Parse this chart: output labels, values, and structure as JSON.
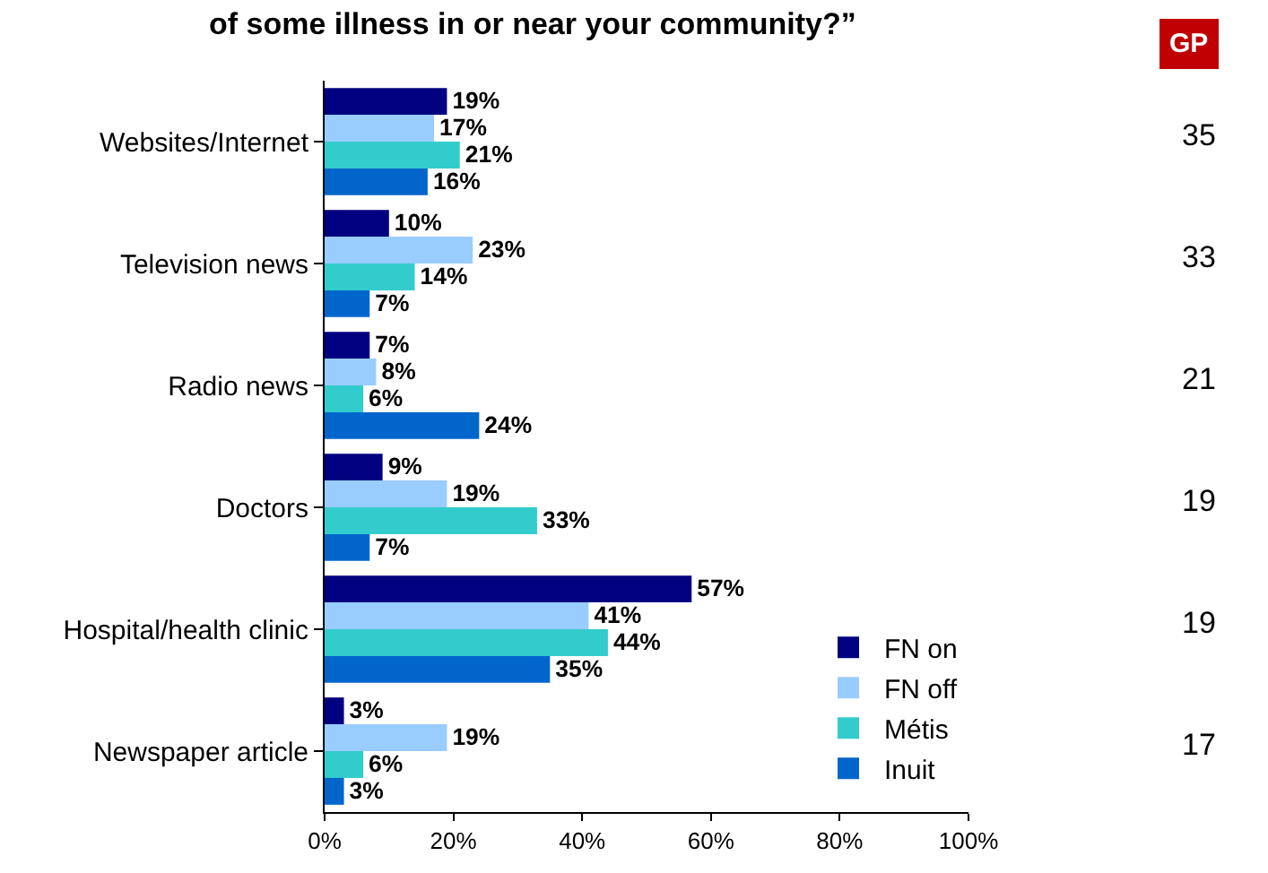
{
  "chart_data": {
    "type": "bar",
    "orientation": "horizontal",
    "title": "of some illness in or near your community?”",
    "categories": [
      "Websites/Internet",
      "Television news",
      "Radio news",
      "Doctors",
      "Hospital/health clinic",
      "Newspaper article"
    ],
    "series": [
      {
        "name": "FN on",
        "color": "#000080",
        "values": [
          19,
          10,
          7,
          9,
          57,
          3
        ],
        "value_labels": [
          "19%",
          "10%",
          "7%",
          "9%",
          "57%",
          "3%"
        ]
      },
      {
        "name": "FN off",
        "color": "#99ccff",
        "values": [
          17,
          23,
          8,
          19,
          41,
          19
        ],
        "value_labels": [
          "17%",
          "23%",
          "8%",
          "19%",
          "41%",
          "19%"
        ]
      },
      {
        "name": "Métis",
        "color": "#33cccc",
        "values": [
          21,
          14,
          6,
          33,
          44,
          6
        ],
        "value_labels": [
          "21%",
          "14%",
          "6%",
          "33%",
          "44%",
          "6%"
        ]
      },
      {
        "name": "Inuit",
        "color": "#0066cc",
        "values": [
          16,
          7,
          24,
          7,
          35,
          3
        ],
        "value_labels": [
          "16%",
          "7%",
          "24%",
          "7%",
          "35%",
          "3%"
        ]
      }
    ],
    "xlim": [
      0,
      100
    ],
    "xticks": [
      {
        "value": 0,
        "label": "0%"
      },
      {
        "value": 20,
        "label": "20%"
      },
      {
        "value": 40,
        "label": "40%"
      },
      {
        "value": 60,
        "label": "60%"
      },
      {
        "value": 80,
        "label": "80%"
      },
      {
        "value": 100,
        "label": "100%"
      }
    ],
    "grid": false,
    "legend": "bottom right",
    "annotations": [
      "GP",
      "35",
      "33",
      "21",
      "19",
      "19",
      "17"
    ]
  }
}
